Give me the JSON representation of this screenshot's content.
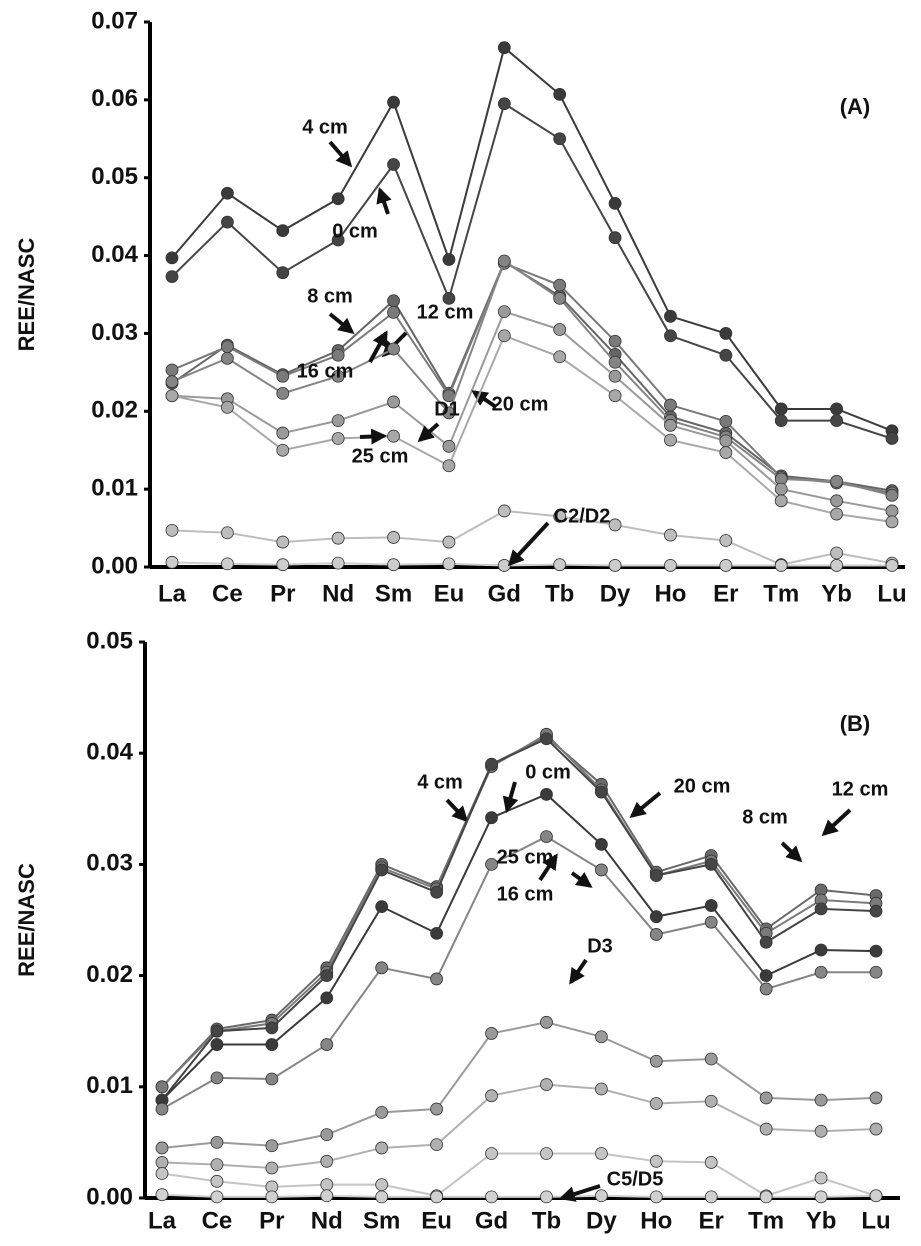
{
  "chart_data": [
    {
      "type": "line",
      "title": "(A)",
      "ylabel": "REE/NASC",
      "categories": [
        "La",
        "Ce",
        "Pr",
        "Nd",
        "Sm",
        "Eu",
        "Gd",
        "Tb",
        "Dy",
        "Ho",
        "Er",
        "Tm",
        "Yb",
        "Lu"
      ],
      "ylim": [
        0,
        0.07
      ],
      "yticks": [
        {
          "value": 0,
          "label": "0.00"
        },
        0.01,
        0.02,
        0.03,
        0.04,
        0.05,
        0.06,
        0.07
      ],
      "series": [
        {
          "name": "4 cm",
          "color": "#3a3a3a",
          "values": [
            0.0397,
            0.048,
            0.0432,
            0.0473,
            0.0597,
            0.0395,
            0.0667,
            0.0607,
            0.0467,
            0.0322,
            0.03,
            0.0203,
            0.0203,
            0.0175
          ]
        },
        {
          "name": "0 cm",
          "color": "#454545",
          "values": [
            0.0373,
            0.0443,
            0.0378,
            0.042,
            0.0517,
            0.0345,
            0.0595,
            0.055,
            0.0423,
            0.0297,
            0.0272,
            0.0188,
            0.0188,
            0.0165
          ]
        },
        {
          "name": "8 cm",
          "color": "#666666",
          "values": [
            0.0236,
            0.0285,
            0.0247,
            0.0278,
            0.0342,
            0.0223,
            0.0392,
            0.0348,
            0.0273,
            0.0193,
            0.0172,
            0.0117,
            0.011,
            0.0098
          ]
        },
        {
          "name": "12 cm",
          "color": "#7a7a7a",
          "values": [
            0.0253,
            0.0283,
            0.0245,
            0.0272,
            0.0327,
            0.022,
            0.039,
            0.0362,
            0.029,
            0.0208,
            0.0187,
            0.0115,
            0.0108,
            0.0095
          ]
        },
        {
          "name": "16 cm",
          "color": "#858585",
          "values": [
            0.0238,
            0.0268,
            0.0223,
            0.0245,
            0.028,
            0.0198,
            0.0393,
            0.0345,
            0.0263,
            0.0188,
            0.0167,
            0.0113,
            0.011,
            0.0092
          ]
        },
        {
          "name": "20 cm",
          "color": "#9a9a9a",
          "values": [
            0.022,
            0.0216,
            0.0172,
            0.0188,
            0.0212,
            0.0155,
            0.0328,
            0.0305,
            0.0245,
            0.0182,
            0.0162,
            0.01,
            0.0085,
            0.0072
          ]
        },
        {
          "name": "25 cm",
          "color": "#a8a8a8",
          "values": [
            0.022,
            0.0205,
            0.015,
            0.0165,
            0.0168,
            0.013,
            0.0297,
            0.027,
            0.022,
            0.0163,
            0.0147,
            0.0085,
            0.0068,
            0.0058
          ]
        },
        {
          "name": "D1",
          "color": "#bdbdbd",
          "values": [
            0.0047,
            0.0044,
            0.0032,
            0.0037,
            0.0038,
            0.0032,
            0.0072,
            0.0065,
            0.0054,
            0.0041,
            0.0034,
            0.0003,
            0.0018,
            0.0005
          ]
        },
        {
          "name": "C2/D2",
          "color": "#cccccc",
          "values": [
            0.0006,
            0.0004,
            0.0003,
            0.0005,
            0.0003,
            0.0004,
            0.0002,
            0.0003,
            0.0002,
            0.0002,
            0.0002,
            0.0002,
            0.0002,
            0.0002
          ]
        }
      ]
    },
    {
      "type": "line",
      "title": "(B)",
      "ylabel": "REE/NASC",
      "categories": [
        "La",
        "Ce",
        "Pr",
        "Nd",
        "Sm",
        "Eu",
        "Gd",
        "Tb",
        "Dy",
        "Ho",
        "Er",
        "Tm",
        "Yb",
        "Lu"
      ],
      "ylim": [
        0,
        0.05
      ],
      "yticks": [
        {
          "value": 0,
          "label": "0.00"
        },
        0.01,
        0.02,
        0.03,
        0.04,
        0.05
      ],
      "series": [
        {
          "name": "4 cm",
          "color": "#6a6a6a",
          "values": [
            0.01,
            0.0152,
            0.016,
            0.0207,
            0.03,
            0.028,
            0.039,
            0.0415,
            0.0372,
            0.0293,
            0.0308,
            0.0242,
            0.0277,
            0.0272
          ]
        },
        {
          "name": "12 cm",
          "color": "#7a7a7a",
          "values": [
            0.01,
            0.015,
            0.0157,
            0.0203,
            0.0297,
            0.0278,
            0.0388,
            0.0417,
            0.0367,
            0.029,
            0.0303,
            0.0238,
            0.0268,
            0.0265
          ]
        },
        {
          "name": "8 cm",
          "color": "#454545",
          "values": [
            0.0088,
            0.015,
            0.0153,
            0.02,
            0.0295,
            0.0275,
            0.039,
            0.0413,
            0.0365,
            0.029,
            0.03,
            0.023,
            0.026,
            0.0258
          ]
        },
        {
          "name": "0 cm",
          "color": "#3a3a3a",
          "values": [
            0.0088,
            0.0138,
            0.0138,
            0.018,
            0.0262,
            0.0238,
            0.0342,
            0.0363,
            0.0318,
            0.0253,
            0.0263,
            0.02,
            0.0223,
            0.0222
          ]
        },
        {
          "name": "16 cm",
          "color": "#858585",
          "values": [
            0.008,
            0.0108,
            0.0107,
            0.0138,
            0.0207,
            0.0197,
            0.03,
            0.0325,
            0.0295,
            0.0237,
            0.0248,
            0.0188,
            0.0203,
            0.0203
          ]
        },
        {
          "name": "20 cm",
          "color": "#9a9a9a",
          "values": [
            0.0045,
            0.005,
            0.0047,
            0.0057,
            0.0077,
            0.008,
            0.0148,
            0.0158,
            0.0145,
            0.0123,
            0.0125,
            0.009,
            0.0088,
            0.009
          ]
        },
        {
          "name": "25 cm",
          "color": "#b0b0b0",
          "values": [
            0.0032,
            0.003,
            0.0027,
            0.0033,
            0.0045,
            0.0048,
            0.0092,
            0.0102,
            0.0098,
            0.0085,
            0.0087,
            0.0062,
            0.006,
            0.0062
          ]
        },
        {
          "name": "D3",
          "color": "#c4c4c4",
          "values": [
            0.0022,
            0.0015,
            0.001,
            0.0012,
            0.0012,
            0.0002,
            0.004,
            0.004,
            0.004,
            0.0033,
            0.0032,
            0.0002,
            0.0018,
            0.0002
          ]
        },
        {
          "name": "C5/D5",
          "color": "#d0d0d0",
          "values": [
            0.0003,
            0.0001,
            0.0001,
            0.0002,
            0.0001,
            0.0001,
            0.0001,
            0.0001,
            0.0002,
            0.0001,
            0.0001,
            0.0001,
            0.0001,
            0.0002
          ]
        }
      ]
    }
  ]
}
